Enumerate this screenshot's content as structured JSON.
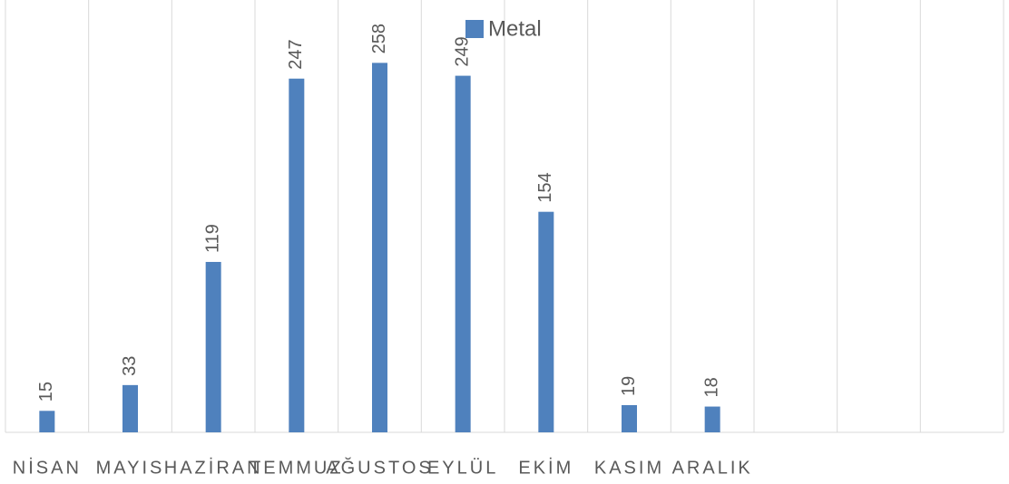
{
  "chart_data": {
    "type": "bar",
    "categories": [
      "NİSAN",
      "MAYIS",
      "HAZİRAN",
      "TEMMUZ",
      "AĞUSTOS",
      "EYLÜL",
      "EKİM",
      "KASIM",
      "ARALIK",
      null,
      null,
      null
    ],
    "series": [
      {
        "name": "Metal",
        "color": "#4f81bd",
        "values": [
          15,
          33,
          119,
          247,
          258,
          249,
          154,
          19,
          18,
          null,
          null,
          null
        ]
      }
    ],
    "ylim": [
      0,
      300
    ],
    "grid": true,
    "legend": "top"
  }
}
